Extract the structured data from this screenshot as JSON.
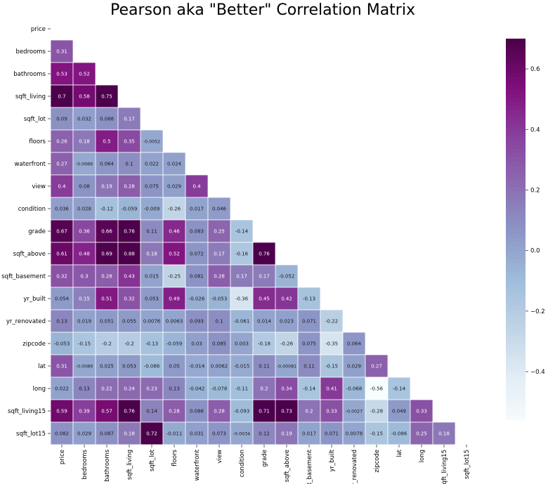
{
  "chart_data": {
    "type": "heatmap",
    "title": "Pearson aka \"Better\" Correlation Matrix",
    "mask": "upper-triangle",
    "labels": [
      "price",
      "bedrooms",
      "bathrooms",
      "sqft_living",
      "sqft_lot",
      "floors",
      "waterfront",
      "view",
      "condition",
      "grade",
      "sqft_above",
      "sqft_basement",
      "yr_built",
      "yr_renovated",
      "zipcode",
      "lat",
      "long",
      "sqft_living15",
      "sqft_lot15"
    ],
    "x_tick_labels": [
      "price",
      "bedrooms",
      "bathrooms",
      "sqft_living",
      "sqft_lot",
      "floors",
      "waterfront",
      "view",
      "condition",
      "grade",
      "sqft_above",
      "ft_basement",
      "yr_built",
      "yr_renovated",
      "zipcode",
      "lat",
      "long",
      "sqft_living15",
      "sqft_lot15"
    ],
    "rows": [
      [],
      [
        "0.31"
      ],
      [
        "0.53",
        "0.52"
      ],
      [
        "0.7",
        "0.58",
        "0.75"
      ],
      [
        "0.09",
        "0.032",
        "0.088",
        "0.17"
      ],
      [
        "0.26",
        "0.18",
        "0.5",
        "0.35",
        "-0.0052"
      ],
      [
        "0.27",
        "-0.0066",
        "0.064",
        "0.1",
        "0.022",
        "0.024"
      ],
      [
        "0.4",
        "0.08",
        "0.19",
        "0.28",
        "0.075",
        "0.029",
        "0.4"
      ],
      [
        "0.036",
        "0.028",
        "-0.12",
        "-0.059",
        "-0.009",
        "-0.26",
        "0.017",
        "0.046"
      ],
      [
        "0.67",
        "0.36",
        "0.66",
        "0.76",
        "0.11",
        "0.46",
        "0.083",
        "0.25",
        "-0.14"
      ],
      [
        "0.61",
        "0.48",
        "0.69",
        "0.88",
        "0.18",
        "0.52",
        "0.072",
        "0.17",
        "-0.16",
        "0.76"
      ],
      [
        "0.32",
        "0.3",
        "0.28",
        "0.43",
        "0.015",
        "-0.25",
        "0.081",
        "0.28",
        "0.17",
        "0.17",
        "-0.052"
      ],
      [
        "0.054",
        "0.15",
        "0.51",
        "0.32",
        "0.053",
        "0.49",
        "-0.026",
        "-0.053",
        "-0.36",
        "0.45",
        "0.42",
        "-0.13"
      ],
      [
        "0.13",
        "0.019",
        "0.051",
        "0.055",
        "0.0076",
        "0.0063",
        "0.093",
        "0.1",
        "-0.061",
        "0.014",
        "0.023",
        "0.071",
        "-0.22"
      ],
      [
        "-0.053",
        "-0.15",
        "-0.2",
        "-0.2",
        "-0.13",
        "-0.059",
        "0.03",
        "0.085",
        "0.003",
        "-0.18",
        "-0.26",
        "0.075",
        "-0.35",
        "0.064"
      ],
      [
        "0.31",
        "-0.0089",
        "0.025",
        "0.053",
        "-0.086",
        "0.05",
        "-0.014",
        "0.0062",
        "-0.015",
        "0.11",
        "-0.00081",
        "0.11",
        "-0.15",
        "0.029",
        "0.27"
      ],
      [
        "0.022",
        "0.13",
        "0.22",
        "0.24",
        "0.23",
        "0.13",
        "-0.042",
        "-0.078",
        "-0.11",
        "0.2",
        "0.34",
        "-0.14",
        "0.41",
        "-0.068",
        "-0.56",
        "-0.14"
      ],
      [
        "0.59",
        "0.39",
        "0.57",
        "0.76",
        "0.14",
        "0.28",
        "0.086",
        "0.28",
        "-0.093",
        "0.71",
        "0.73",
        "0.2",
        "0.33",
        "-0.0027",
        "-0.28",
        "0.049",
        "0.33"
      ],
      [
        "0.082",
        "0.029",
        "0.087",
        "0.18",
        "0.72",
        "-0.011",
        "0.031",
        "0.073",
        "-0.0034",
        "0.12",
        "0.19",
        "0.017",
        "0.071",
        "0.0078",
        "-0.15",
        "-0.086",
        "0.25",
        "0.18"
      ]
    ],
    "colormap": "BuPu",
    "vmin": -0.56,
    "vmax": 0.7,
    "colorbar_ticks": [
      "0.6",
      "0.4",
      "0.2",
      "0.0",
      "−0.2",
      "−0.4"
    ]
  }
}
